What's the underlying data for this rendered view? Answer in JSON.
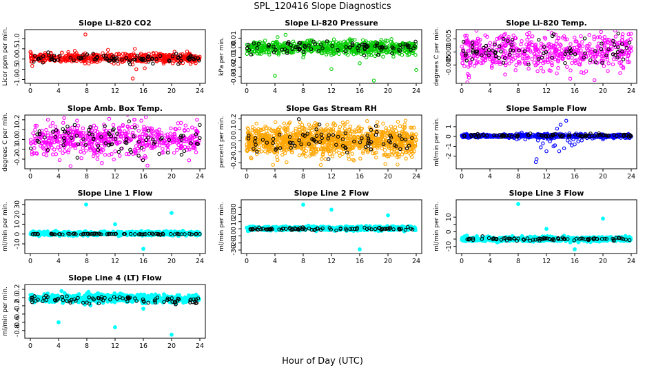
{
  "page": {
    "title": "SPL_120416  Slope Diagnostics",
    "xlabel": "Hour of Day (UTC)"
  },
  "chart_data": [
    {
      "type": "scatter",
      "title": "Slope Li-820 CO2",
      "xlabel": "",
      "ylabel": "Licor ppm per min.",
      "xlim": [
        0,
        24
      ],
      "xticks": [
        0,
        4,
        8,
        12,
        16,
        20,
        24
      ],
      "ylim": [
        -1.05,
        1.3
      ],
      "yticks": [
        -1.0,
        -0.5,
        0.0,
        0.5,
        1.0
      ],
      "ytick_labels": [
        "-1.0",
        "-0.5",
        "0.0",
        "0.5",
        "1.0"
      ],
      "grid": false,
      "legend": "none",
      "series": [
        {
          "color": "#ff0000",
          "marker": "open-circle",
          "n": 520,
          "center": 0.05,
          "spread": 0.11,
          "points": [
            [
              7.8,
              1.2
            ],
            [
              14.5,
              -0.95
            ],
            [
              15.0,
              -0.5
            ],
            [
              16.2,
              -0.45
            ],
            [
              11.0,
              0.45
            ],
            [
              14.8,
              0.5
            ],
            [
              6.3,
              0.4
            ]
          ]
        },
        {
          "color": "#000000",
          "marker": "open-circle",
          "n": 90,
          "center": 0.02,
          "spread": 0.1,
          "points": []
        }
      ]
    },
    {
      "type": "scatter",
      "title": "Slope Li-820 Pressure",
      "xlabel": "",
      "ylabel": "kPa per min.",
      "xlim": [
        0,
        24
      ],
      "xticks": [
        0,
        4,
        8,
        12,
        16,
        20,
        24
      ],
      "ylim": [
        -0.034,
        0.016
      ],
      "yticks": [
        -0.03,
        -0.02,
        -0.01,
        0.0,
        0.01
      ],
      "ytick_labels": [
        "-0.03",
        "-0.02",
        "-0.01",
        "0.00",
        "0.01"
      ],
      "grid": false,
      "legend": "none",
      "series": [
        {
          "color": "#00cc00",
          "marker": "open-circle",
          "n": 680,
          "center": 0.0,
          "spread": 0.0035,
          "points": [
            [
              4.0,
              -0.029
            ],
            [
              5.5,
              0.0135
            ],
            [
              12.0,
              -0.022
            ],
            [
              16.0,
              -0.016
            ],
            [
              18.0,
              -0.034
            ],
            [
              24.0,
              -0.023
            ],
            [
              20.5,
              0.009
            ],
            [
              8.0,
              -0.01
            ]
          ]
        },
        {
          "color": "#000000",
          "marker": "open-circle",
          "n": 85,
          "center": 0.0,
          "spread": 0.003,
          "points": []
        }
      ]
    },
    {
      "type": "scatter",
      "title": "Slope Li-820 Temp.",
      "xlabel": "",
      "ylabel": "degrees C per min.",
      "xlim": [
        0,
        24
      ],
      "xticks": [
        0,
        4,
        8,
        12,
        16,
        20,
        24
      ],
      "ylim": [
        -0.011,
        0.0075
      ],
      "yticks": [
        -0.005,
        0.0,
        0.005
      ],
      "ytick_labels": [
        "-0.005",
        "0.000",
        "0.005"
      ],
      "grid": false,
      "legend": "none",
      "series": [
        {
          "color": "#ff00ff",
          "marker": "open-circle",
          "n": 560,
          "center": 0.0,
          "spread": 0.0035,
          "points": [
            [
              22.8,
              0.0068
            ],
            [
              18.8,
              -0.0108
            ],
            [
              14.5,
              0.006
            ],
            [
              5.0,
              0.005
            ],
            [
              1.0,
              -0.009
            ]
          ]
        },
        {
          "color": "#000000",
          "marker": "open-circle",
          "n": 80,
          "center": 0.0,
          "spread": 0.0028,
          "points": []
        }
      ]
    },
    {
      "type": "scatter",
      "title": "Slope Amb. Box Temp.",
      "xlabel": "",
      "ylabel": "degrees C per min.",
      "xlim": [
        0,
        24
      ],
      "xticks": [
        0,
        4,
        8,
        12,
        16,
        20,
        24
      ],
      "ylim": [
        -0.27,
        0.22
      ],
      "yticks": [
        -0.2,
        -0.1,
        0.0,
        0.1,
        0.2
      ],
      "ytick_labels": [
        "-0.2",
        "-0.1",
        "0.0",
        "0.1",
        "0.2"
      ],
      "grid": false,
      "legend": "none",
      "series": [
        {
          "color": "#ff00ff",
          "marker": "open-circle",
          "n": 560,
          "center": 0.0,
          "spread": 0.08,
          "points": [
            [
              2.5,
              0.2
            ],
            [
              23.6,
              0.2
            ],
            [
              9.5,
              -0.2
            ]
          ]
        },
        {
          "color": "#000000",
          "marker": "open-circle",
          "n": 85,
          "center": 0.0,
          "spread": 0.07,
          "points": []
        }
      ]
    },
    {
      "type": "scatter",
      "title": "Slope Gas Stream RH",
      "xlabel": "",
      "ylabel": "percent per min.",
      "xlim": [
        0,
        24
      ],
      "xticks": [
        0,
        4,
        8,
        12,
        16,
        20,
        24
      ],
      "ylim": [
        -0.23,
        0.21
      ],
      "yticks": [
        -0.2,
        -0.1,
        0.0,
        0.1,
        0.2
      ],
      "ytick_labels": [
        "-0.2",
        "-0.1",
        "0.0",
        "0.1",
        "0.2"
      ],
      "grid": false,
      "legend": "none",
      "series": [
        {
          "color": "#ffa500",
          "marker": "open-circle",
          "n": 1100,
          "center": 0.0,
          "spread": 0.07,
          "points": [
            [
              10.5,
              -0.22
            ],
            [
              6.0,
              0.16
            ],
            [
              18.5,
              0.17
            ]
          ]
        },
        {
          "color": "#000000",
          "marker": "open-circle",
          "n": 80,
          "center": 0.0,
          "spread": 0.06,
          "points": []
        }
      ]
    },
    {
      "type": "scatter",
      "title": "Slope Sample Flow",
      "xlabel": "",
      "ylabel": "ml/min per min.",
      "xlim": [
        0,
        24
      ],
      "xticks": [
        0,
        4,
        8,
        12,
        16,
        20,
        24
      ],
      "ylim": [
        -3.0,
        1.9
      ],
      "yticks": [
        -2,
        -1,
        0,
        1
      ],
      "ytick_labels": [
        "-2",
        "-1",
        "0",
        "1"
      ],
      "grid": false,
      "legend": "none",
      "series": [
        {
          "color": "#0000ff",
          "marker": "open-circle",
          "n": 620,
          "center": 0.05,
          "spread": 0.09,
          "points": [
            [
              10.5,
              -2.6
            ],
            [
              10.6,
              -2.3
            ],
            [
              12.0,
              -1.5
            ],
            [
              13.0,
              -1.0
            ],
            [
              13.2,
              -0.9
            ],
            [
              13.5,
              0.8
            ],
            [
              14.0,
              1.2
            ],
            [
              14.8,
              1.6
            ],
            [
              15.0,
              -0.4
            ],
            [
              15.3,
              -0.6
            ],
            [
              15.8,
              -0.3
            ],
            [
              11.5,
              -0.7
            ],
            [
              12.5,
              -0.5
            ],
            [
              16.0,
              -0.8
            ],
            [
              16.5,
              -0.5
            ],
            [
              14.5,
              -1.2
            ],
            [
              11.2,
              -1.1
            ],
            [
              13.8,
              -1.5
            ],
            [
              15.6,
              -0.9
            ],
            [
              12.2,
              -0.3
            ],
            [
              17.0,
              -0.4
            ],
            [
              10.8,
              -0.4
            ],
            [
              16.2,
              0.3
            ],
            [
              18.5,
              -0.2
            ],
            [
              20.0,
              -0.3
            ],
            [
              19.0,
              0.2
            ],
            [
              9.0,
              -0.3
            ],
            [
              7.8,
              -0.3
            ],
            [
              8.5,
              0.4
            ]
          ]
        },
        {
          "color": "#000000",
          "marker": "open-circle",
          "n": 85,
          "center": 0.1,
          "spread": 0.08,
          "points": []
        }
      ]
    },
    {
      "type": "scatter",
      "title": "Slope Line 1 Flow",
      "xlabel": "",
      "ylabel": "ml/min per min.",
      "xlim": [
        0,
        24
      ],
      "xticks": [
        0,
        4,
        8,
        12,
        16,
        20,
        24
      ],
      "ylim": [
        -17,
        32
      ],
      "yticks": [
        -10,
        0,
        10,
        20,
        30
      ],
      "ytick_labels": [
        "-10",
        "0",
        "10",
        "20",
        "30"
      ],
      "grid": false,
      "legend": "none",
      "series": [
        {
          "color": "#00ffff",
          "marker": "filled-circle",
          "n": 560,
          "center": 0.5,
          "spread": 1.0,
          "points": [
            [
              7.9,
              30.0
            ],
            [
              20.0,
              21.5
            ],
            [
              12.0,
              10.0
            ],
            [
              16.0,
              -15.0
            ]
          ]
        },
        {
          "color": "#000000",
          "marker": "open-circle",
          "n": 80,
          "center": 0.0,
          "spread": 0.3,
          "points": []
        }
      ]
    },
    {
      "type": "scatter",
      "title": "Slope Line 2 Flow",
      "xlabel": "",
      "ylabel": "ml/min per min.",
      "xlim": [
        0,
        24
      ],
      "xticks": [
        0,
        4,
        8,
        12,
        16,
        20,
        24
      ],
      "ylim": [
        -31,
        37
      ],
      "yticks": [
        -30,
        -20,
        -10,
        0,
        10,
        20,
        30
      ],
      "ytick_labels": [
        "-30",
        "-20",
        "-10",
        "0",
        "10",
        "20",
        "30"
      ],
      "grid": false,
      "legend": "none",
      "series": [
        {
          "color": "#00ffff",
          "marker": "filled-circle",
          "n": 560,
          "center": 0.5,
          "spread": 1.4,
          "points": [
            [
              8.0,
              34.0
            ],
            [
              12.0,
              27.0
            ],
            [
              20.0,
              19.0
            ],
            [
              16.0,
              -29.0
            ]
          ]
        },
        {
          "color": "#000000",
          "marker": "open-circle",
          "n": 85,
          "center": 0.0,
          "spread": 1.0,
          "points": []
        }
      ]
    },
    {
      "type": "scatter",
      "title": "Slope Line 3 Flow",
      "xlabel": "",
      "ylabel": "ml/min per min.",
      "xlim": [
        0,
        24
      ],
      "xticks": [
        0,
        4,
        8,
        12,
        16,
        20,
        24
      ],
      "ylim": [
        -13,
        20
      ],
      "yticks": [
        -10,
        -5,
        0,
        5,
        10
      ],
      "ytick_labels": [
        "-10",
        "",
        "0",
        "",
        "10"
      ],
      "grid": false,
      "legend": "none",
      "series": [
        {
          "color": "#00ffff",
          "marker": "filled-circle",
          "n": 560,
          "center": -5.0,
          "spread": 0.8,
          "points": [
            [
              8.0,
              19.0
            ],
            [
              20.0,
              9.0
            ],
            [
              12.0,
              2.0
            ],
            [
              16.0,
              -12.0
            ]
          ]
        },
        {
          "color": "#000000",
          "marker": "open-circle",
          "n": 85,
          "center": -5.0,
          "spread": 0.6,
          "points": []
        }
      ]
    },
    {
      "type": "scatter",
      "title": "Slope Line 4 (LT) Flow",
      "xlabel": "",
      "ylabel": "ml/min per min.",
      "xlim": [
        0,
        24
      ],
      "xticks": [
        0,
        4,
        8,
        12,
        16,
        20,
        24
      ],
      "ylim": [
        -0.92,
        0.25
      ],
      "yticks": [
        -0.8,
        -0.6,
        -0.4,
        -0.2,
        0.0,
        0.2
      ],
      "ytick_labels": [
        "-0.8",
        "-0.6",
        "-0.4",
        "-0.2",
        "0.0",
        "0.2"
      ],
      "grid": false,
      "legend": "none",
      "series": [
        {
          "color": "#00ffff",
          "marker": "filled-circle",
          "n": 560,
          "center": -0.02,
          "spread": 0.05,
          "points": [
            [
              4.0,
              -0.6
            ],
            [
              12.0,
              -0.72
            ],
            [
              20.0,
              -0.9
            ],
            [
              16.0,
              -0.27
            ],
            [
              8.0,
              0.1
            ]
          ]
        },
        {
          "color": "#000000",
          "marker": "open-circle",
          "n": 85,
          "center": -0.05,
          "spread": 0.05,
          "points": []
        }
      ]
    }
  ]
}
